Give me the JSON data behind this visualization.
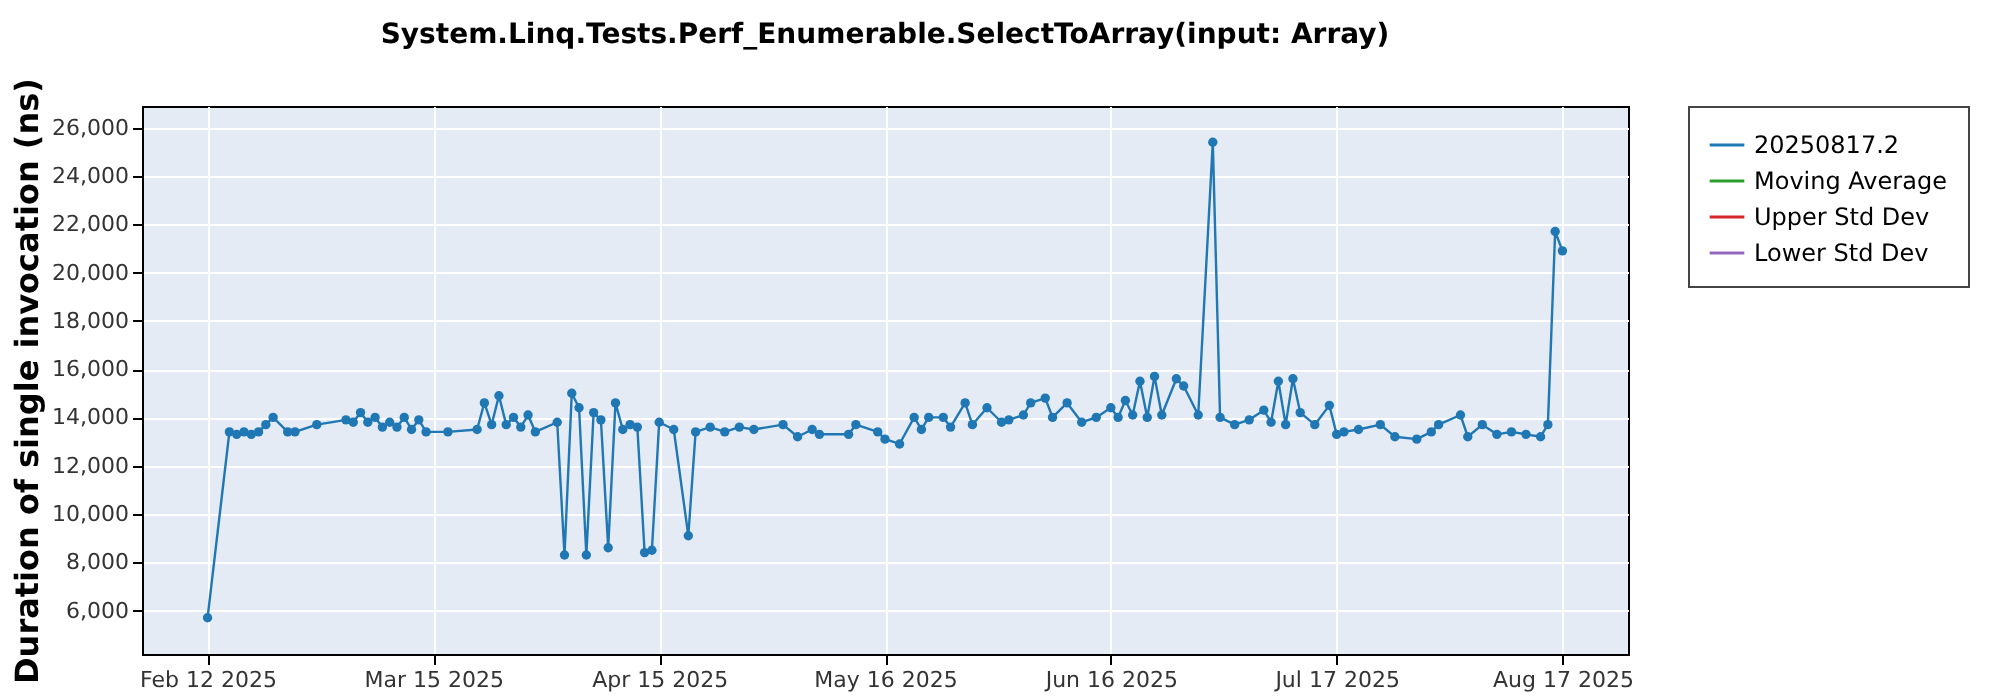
{
  "chart_data": {
    "type": "line",
    "title": "System.Linq.Tests.Perf_Enumerable.SelectToArray(input: Array)",
    "ylabel": "Duration of single invocation (ns)",
    "x": [
      "2025-02-12",
      "2025-02-15",
      "2025-02-16",
      "2025-02-17",
      "2025-02-18",
      "2025-02-19",
      "2025-02-20",
      "2025-02-21",
      "2025-02-23",
      "2025-02-24",
      "2025-02-27",
      "2025-03-03",
      "2025-03-04",
      "2025-03-05",
      "2025-03-06",
      "2025-03-07",
      "2025-03-08",
      "2025-03-09",
      "2025-03-10",
      "2025-03-11",
      "2025-03-12",
      "2025-03-13",
      "2025-03-14",
      "2025-03-17",
      "2025-03-21",
      "2025-03-22",
      "2025-03-23",
      "2025-03-24",
      "2025-03-25",
      "2025-03-26",
      "2025-03-27",
      "2025-03-28",
      "2025-03-29",
      "2025-04-01",
      "2025-04-02",
      "2025-04-03",
      "2025-04-04",
      "2025-04-05",
      "2025-04-06",
      "2025-04-07",
      "2025-04-08",
      "2025-04-09",
      "2025-04-10",
      "2025-04-11",
      "2025-04-12",
      "2025-04-13",
      "2025-04-14",
      "2025-04-15",
      "2025-04-17",
      "2025-04-19",
      "2025-04-20",
      "2025-04-22",
      "2025-04-24",
      "2025-04-26",
      "2025-04-28",
      "2025-05-02",
      "2025-05-04",
      "2025-05-06",
      "2025-05-07",
      "2025-05-11",
      "2025-05-12",
      "2025-05-15",
      "2025-05-16",
      "2025-05-18",
      "2025-05-20",
      "2025-05-21",
      "2025-05-22",
      "2025-05-24",
      "2025-05-25",
      "2025-05-27",
      "2025-05-28",
      "2025-05-30",
      "2025-06-01",
      "2025-06-02",
      "2025-06-04",
      "2025-06-05",
      "2025-06-07",
      "2025-06-08",
      "2025-06-10",
      "2025-06-12",
      "2025-06-14",
      "2025-06-16",
      "2025-06-17",
      "2025-06-18",
      "2025-06-19",
      "2025-06-20",
      "2025-06-21",
      "2025-06-22",
      "2025-06-23",
      "2025-06-25",
      "2025-06-26",
      "2025-06-28",
      "2025-06-30",
      "2025-07-01",
      "2025-07-03",
      "2025-07-05",
      "2025-07-07",
      "2025-07-08",
      "2025-07-09",
      "2025-07-10",
      "2025-07-11",
      "2025-07-12",
      "2025-07-14",
      "2025-07-16",
      "2025-07-17",
      "2025-07-18",
      "2025-07-20",
      "2025-07-23",
      "2025-07-25",
      "2025-07-28",
      "2025-07-30",
      "2025-07-31",
      "2025-08-03",
      "2025-08-04",
      "2025-08-06",
      "2025-08-08",
      "2025-08-10",
      "2025-08-12",
      "2025-08-14",
      "2025-08-15",
      "2025-08-16",
      "2025-08-17"
    ],
    "series": [
      {
        "name": "20250817.2",
        "color": "#1f77b4",
        "values": [
          5700,
          13400,
          13300,
          13400,
          13300,
          13400,
          13700,
          14000,
          13400,
          13400,
          13700,
          13900,
          13800,
          14200,
          13800,
          14000,
          13600,
          13800,
          13600,
          14000,
          13500,
          13900,
          13400,
          13400,
          13500,
          14600,
          13700,
          14900,
          13700,
          14000,
          13600,
          14100,
          13400,
          13800,
          8300,
          15000,
          14400,
          8300,
          14200,
          13900,
          8600,
          14600,
          13500,
          13700,
          13600,
          8400,
          8500,
          13800,
          13500,
          9100,
          13400,
          13600,
          13400,
          13600,
          13500,
          13700,
          13200,
          13500,
          13300,
          13300,
          13700,
          13400,
          13100,
          12900,
          14000,
          13500,
          14000,
          14000,
          13600,
          14600,
          13700,
          14400,
          13800,
          13900,
          14100,
          14600,
          14800,
          14000,
          14600,
          13800,
          14000,
          14400,
          14000,
          14700,
          14100,
          15500,
          14000,
          15700,
          14100,
          15600,
          15300,
          14100,
          25400,
          14000,
          13700,
          13900,
          14300,
          13800,
          15500,
          13700,
          15600,
          14200,
          13700,
          14500,
          13300,
          13400,
          13500,
          13700,
          13200,
          13100,
          13400,
          13700,
          14100,
          13200,
          13700,
          13300,
          13400,
          13300,
          13200,
          13700,
          21700,
          20900
        ]
      },
      {
        "name": "Moving Average",
        "color": "#2ca02c",
        "values": [
          null,
          null,
          null,
          null,
          null,
          null,
          null,
          null,
          null,
          null,
          null,
          null,
          null,
          null,
          null,
          null,
          null,
          null,
          null,
          null,
          null,
          null,
          null,
          null,
          null,
          null,
          null,
          null,
          null,
          null,
          null,
          null,
          null,
          null,
          null,
          null,
          null,
          null,
          null,
          null,
          null,
          null,
          null,
          null,
          null,
          null,
          null,
          null,
          null,
          null,
          null,
          null,
          null,
          null,
          null,
          null,
          null,
          null,
          null,
          null,
          null,
          null,
          null,
          null,
          null,
          null,
          null,
          null,
          null,
          null,
          null,
          null,
          null,
          null,
          null,
          null,
          null,
          null,
          null,
          null,
          null,
          null,
          null,
          null,
          null,
          null,
          null,
          null,
          null,
          null,
          null,
          null,
          null,
          null,
          null,
          null,
          null,
          null,
          null,
          null,
          null,
          null,
          null,
          null,
          null,
          null,
          null,
          null,
          null,
          null,
          null,
          null,
          null,
          null,
          null,
          null,
          null,
          null,
          null,
          null,
          null,
          null
        ]
      },
      {
        "name": "Upper Std Dev",
        "color": "#d62728",
        "values": [
          null,
          null,
          null,
          null,
          null,
          null,
          null,
          null,
          null,
          null,
          null,
          null,
          null,
          null,
          null,
          null,
          null,
          null,
          null,
          null,
          null,
          null,
          null,
          null,
          null,
          null,
          null,
          null,
          null,
          null,
          null,
          null,
          null,
          null,
          null,
          null,
          null,
          null,
          null,
          null,
          null,
          null,
          null,
          null,
          null,
          null,
          null,
          null,
          null,
          null,
          null,
          null,
          null,
          null,
          null,
          null,
          null,
          null,
          null,
          null,
          null,
          null,
          null,
          null,
          null,
          null,
          null,
          null,
          null,
          null,
          null,
          null,
          null,
          null,
          null,
          null,
          null,
          null,
          null,
          null,
          null,
          null,
          null,
          null,
          null,
          null,
          null,
          null,
          null,
          null,
          null,
          null,
          null,
          null,
          null,
          null,
          null,
          null,
          null,
          null,
          null,
          null,
          null,
          null,
          null,
          null,
          null,
          null,
          null,
          null,
          null,
          null,
          null,
          null,
          null,
          null,
          null,
          null,
          null,
          null,
          null,
          null
        ]
      },
      {
        "name": "Lower Std Dev",
        "color": "#9467bd",
        "values": [
          null,
          null,
          null,
          null,
          null,
          null,
          null,
          null,
          null,
          null,
          null,
          null,
          null,
          null,
          null,
          null,
          null,
          null,
          null,
          null,
          null,
          null,
          null,
          null,
          null,
          null,
          null,
          null,
          null,
          null,
          null,
          null,
          null,
          null,
          null,
          null,
          null,
          null,
          null,
          null,
          null,
          null,
          null,
          null,
          null,
          null,
          null,
          null,
          null,
          null,
          null,
          null,
          null,
          null,
          null,
          null,
          null,
          null,
          null,
          null,
          null,
          null,
          null,
          null,
          null,
          null,
          null,
          null,
          null,
          null,
          null,
          null,
          null,
          null,
          null,
          null,
          null,
          null,
          null,
          null,
          null,
          null,
          null,
          null,
          null,
          null,
          null,
          null,
          null,
          null,
          null,
          null,
          null,
          null,
          null,
          null,
          null,
          null,
          null,
          null,
          null,
          null,
          null,
          null,
          null,
          null,
          null,
          null,
          null,
          null,
          null,
          null,
          null,
          null,
          null,
          null,
          null,
          null,
          null,
          null,
          null,
          null
        ]
      }
    ],
    "xlim": [
      "2025-02-03",
      "2025-08-26"
    ],
    "xticks": [
      {
        "value": "2025-02-12",
        "label": "Feb 12 2025"
      },
      {
        "value": "2025-03-15",
        "label": "Mar 15 2025"
      },
      {
        "value": "2025-04-15",
        "label": "Apr 15 2025"
      },
      {
        "value": "2025-05-16",
        "label": "May 16 2025"
      },
      {
        "value": "2025-06-16",
        "label": "Jun 16 2025"
      },
      {
        "value": "2025-07-17",
        "label": "Jul 17 2025"
      },
      {
        "value": "2025-08-17",
        "label": "Aug 17 2025"
      }
    ],
    "ylim": [
      4200,
      26900
    ],
    "yticks": [
      {
        "value": 6000,
        "label": "6,000"
      },
      {
        "value": 8000,
        "label": "8,000"
      },
      {
        "value": 10000,
        "label": "10,000"
      },
      {
        "value": 12000,
        "label": "12,000"
      },
      {
        "value": 14000,
        "label": "14,000"
      },
      {
        "value": 16000,
        "label": "16,000"
      },
      {
        "value": 18000,
        "label": "18,000"
      },
      {
        "value": 20000,
        "label": "20,000"
      },
      {
        "value": 22000,
        "label": "22,000"
      },
      {
        "value": 24000,
        "label": "24,000"
      },
      {
        "value": 26000,
        "label": "26,000"
      }
    ],
    "grid": true,
    "legend": "right",
    "marker": "circle",
    "line_style": "solid"
  }
}
